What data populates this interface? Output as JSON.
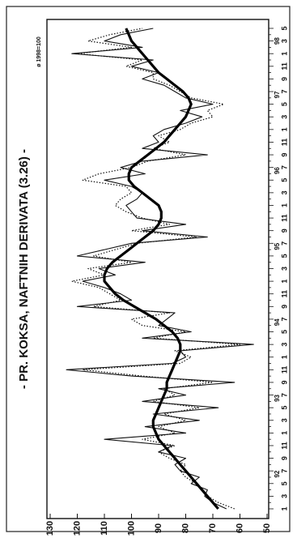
{
  "chart_data": {
    "type": "line",
    "title": "- PR. KOKSA, NAFTNIH DERIVATA (3.26) -",
    "subtitle": "ø 1998=100",
    "categories": [
      "1",
      null,
      "3",
      null,
      "5",
      null,
      "7",
      null,
      "9",
      null,
      "11",
      null,
      "1",
      null,
      "3",
      null,
      "5",
      null,
      "7",
      null,
      "9",
      null,
      "11",
      null,
      "1",
      null,
      "3",
      null,
      "5",
      null,
      "7",
      null,
      "9",
      null,
      "11",
      null,
      "1",
      null,
      "3",
      null,
      "5",
      null,
      "7",
      null,
      "9",
      null,
      "11",
      null,
      "1",
      null,
      "3",
      null,
      "5",
      null,
      "7",
      null,
      "9",
      null,
      "11",
      null,
      "1",
      null,
      "3",
      null,
      "5",
      null,
      "7",
      null,
      "9",
      null,
      "11",
      null,
      "1",
      null,
      "3",
      null,
      "5"
    ],
    "year_labels": [
      "92",
      "93",
      "94",
      "95",
      "96",
      "97",
      "98"
    ],
    "series": [
      {
        "color": "#111",
        "width": 1.1,
        "dash": "none",
        "values": [
          65,
          70,
          73,
          72,
          78,
          75,
          82,
          84,
          80,
          90,
          85,
          110,
          80,
          95,
          75,
          92,
          68,
          96,
          80,
          90,
          62,
          100,
          124,
          85,
          80,
          82,
          55,
          96,
          78,
          90,
          87,
          84,
          120,
          100,
          104,
          110,
          118,
          106,
          112,
          95,
          120,
          110,
          100,
          72,
          96,
          80,
          98,
          100,
          102,
          98,
          96,
          100,
          110,
          95,
          104,
          96,
          72,
          96,
          90,
          92,
          88,
          80,
          74,
          82,
          70,
          80,
          84,
          88,
          96,
          90,
          100,
          92,
          122,
          96,
          110,
          104,
          92
        ]
      },
      {
        "color": "#111",
        "width": 1.2,
        "dash": "1.5 2",
        "values": [
          62,
          68,
          72,
          74,
          76,
          80,
          82,
          80,
          86,
          90,
          84,
          96,
          84,
          90,
          80,
          88,
          75,
          92,
          84,
          88,
          70,
          96,
          118,
          82,
          78,
          84,
          60,
          92,
          80,
          96,
          100,
          86,
          114,
          104,
          108,
          112,
          122,
          110,
          116,
          100,
          114,
          106,
          98,
          76,
          100,
          86,
          96,
          102,
          106,
          104,
          100,
          102,
          118,
          112,
          100,
          94,
          80,
          92,
          86,
          90,
          82,
          78,
          70,
          72,
          66,
          78,
          82,
          86,
          92,
          92,
          102,
          96,
          120,
          100,
          116,
          108,
          96
        ]
      },
      {
        "color": "#000",
        "width": 3.2,
        "dash": "none",
        "values": [
          68,
          70,
          72,
          74,
          76,
          78,
          80,
          82,
          84,
          86,
          88,
          90,
          91,
          92,
          92,
          91,
          90,
          89,
          88,
          87,
          87,
          86,
          85,
          84,
          83,
          82,
          82,
          83,
          85,
          88,
          91,
          95,
          99,
          103,
          106,
          108,
          110,
          110,
          109,
          107,
          104,
          101,
          98,
          95,
          92,
          90,
          89,
          89,
          90,
          93,
          96,
          99,
          101,
          101,
          100,
          97,
          94,
          91,
          88,
          86,
          84,
          82,
          80,
          79,
          78,
          79,
          81,
          84,
          87,
          90,
          92,
          94,
          96,
          98,
          100,
          101,
          102
        ]
      }
    ],
    "ylim": [
      50,
      130
    ],
    "yticks": [
      50,
      60,
      70,
      80,
      90,
      100,
      110,
      120,
      130
    ],
    "grid": false
  }
}
